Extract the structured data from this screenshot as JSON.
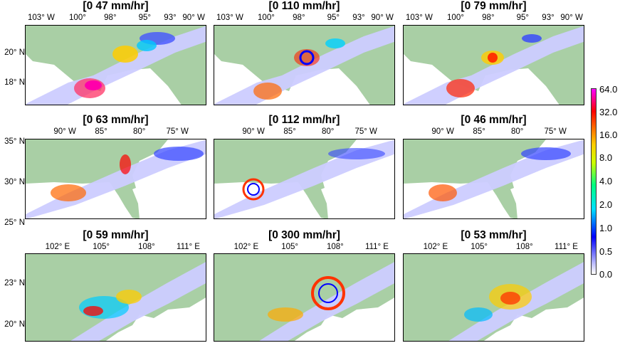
{
  "panels": [
    {
      "title": "[0 47 mm/hr]",
      "xticks": [
        "103° W",
        "100°",
        "98°",
        "95°",
        "93°",
        "90° W"
      ],
      "yticks": [
        "20° N",
        "18° N"
      ]
    },
    {
      "title": "[0 110 mm/hr]",
      "xticks": [
        "103° W",
        "100°",
        "98°",
        "95°",
        "93°",
        "90° W"
      ],
      "yticks": []
    },
    {
      "title": "[0 79 mm/hr]",
      "xticks": [
        "103° W",
        "100°",
        "98°",
        "95°",
        "93°",
        "90° W"
      ],
      "yticks": []
    },
    {
      "title": "[0 63 mm/hr]",
      "xticks": [
        "90° W",
        "85°",
        "80°",
        "75° W"
      ],
      "yticks": [
        "35° N",
        "30° N",
        "25° N"
      ]
    },
    {
      "title": "[0 112 mm/hr]",
      "xticks": [
        "90° W",
        "85°",
        "80°",
        "75° W"
      ],
      "yticks": []
    },
    {
      "title": "[0 46 mm/hr]",
      "xticks": [
        "90° W",
        "85°",
        "80°",
        "75° W"
      ],
      "yticks": []
    },
    {
      "title": "[0 59 mm/hr]",
      "xticks": [
        "102° E",
        "105°",
        "108°",
        "111° E"
      ],
      "yticks": [
        "23° N",
        "20° N"
      ]
    },
    {
      "title": "[0 300 mm/hr]",
      "xticks": [
        "102° E",
        "105°",
        "108°",
        "111° E"
      ],
      "yticks": []
    },
    {
      "title": "[0 53 mm/hr]",
      "xticks": [
        "102° E",
        "105°",
        "108°",
        "111° E"
      ],
      "yticks": []
    }
  ],
  "colorbar": {
    "labels": [
      "64.0",
      "32.0",
      "16.0",
      "8.0",
      "4.0",
      "2.0",
      "1.0",
      "0.5",
      "0.0"
    ]
  },
  "colors": {
    "land": "#a9cfa5",
    "ocean": "#ffffff",
    "swath": "#ccccff"
  },
  "chart_data": {
    "type": "heatmap",
    "panel_titles": [
      "[0 47 mm/hr]",
      "[0 110 mm/hr]",
      "[0 79 mm/hr]",
      "[0 63 mm/hr]",
      "[0 112 mm/hr]",
      "[0 46 mm/hr]",
      "[0 59 mm/hr]",
      "[0 300 mm/hr]",
      "[0 53 mm/hr]"
    ],
    "precip_max_mm_hr": [
      47,
      110,
      79,
      63,
      112,
      46,
      59,
      300,
      53
    ],
    "colorbar_ticks": [
      0.0,
      0.5,
      1.0,
      2.0,
      4.0,
      8.0,
      16.0,
      32.0,
      64.0
    ],
    "rows": [
      {
        "xticks": [
          "103° W",
          "100°",
          "98°",
          "95°",
          "93°",
          "90° W"
        ],
        "yticks": [
          "20° N",
          "18° N"
        ]
      },
      {
        "xticks": [
          "90° W",
          "85°",
          "80°",
          "75° W"
        ],
        "yticks": [
          "35° N",
          "30° N",
          "25° N"
        ]
      },
      {
        "xticks": [
          "102° E",
          "105°",
          "108°",
          "111° E"
        ],
        "yticks": [
          "23° N",
          "20° N"
        ]
      }
    ]
  }
}
